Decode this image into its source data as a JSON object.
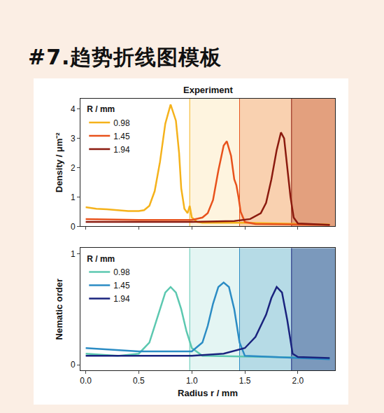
{
  "header": "#7.趋势折线图模板",
  "chart_data": [
    {
      "type": "line",
      "title": "Experiment",
      "ylabel": "Density / μm⁻²",
      "xlim": [
        -0.05,
        2.35
      ],
      "xticks": [
        {
          "value": 0,
          "label": "0.0"
        },
        {
          "value": 0.5,
          "label": "0.5"
        },
        {
          "value": 1,
          "label": "1.0"
        },
        {
          "value": 1.5,
          "label": "1.5"
        },
        {
          "value": 2,
          "label": "2.0"
        }
      ],
      "ylim": [
        0,
        4.35
      ],
      "yticks": [
        0,
        1,
        2,
        3,
        4
      ],
      "tick_labels": "y",
      "grid": false,
      "legend": "upper left",
      "legend_title": "R / mm",
      "series": [
        {
          "name": "0.98",
          "color": "#f5b21b",
          "x": [
            0,
            0.1,
            0.2,
            0.3,
            0.4,
            0.5,
            0.55,
            0.6,
            0.65,
            0.7,
            0.75,
            0.8,
            0.85,
            0.88,
            0.9,
            0.93,
            0.96,
            0.98,
            1.0,
            1.05,
            1.1,
            1.5,
            2.0,
            2.3
          ],
          "values": [
            0.65,
            0.6,
            0.58,
            0.55,
            0.52,
            0.52,
            0.55,
            0.7,
            1.2,
            2.2,
            3.5,
            4.15,
            3.6,
            2.5,
            1.3,
            0.6,
            0.45,
            0.7,
            0.3,
            0.15,
            0.12,
            0.12,
            0.08,
            0.06
          ]
        },
        {
          "name": "1.45",
          "color": "#e8521c",
          "x": [
            0,
            0.5,
            1.0,
            1.1,
            1.15,
            1.2,
            1.25,
            1.3,
            1.33,
            1.37,
            1.4,
            1.42,
            1.44,
            1.46,
            1.5,
            1.6,
            2.3
          ],
          "values": [
            0.25,
            0.22,
            0.22,
            0.3,
            0.45,
            0.9,
            1.9,
            2.75,
            2.9,
            2.4,
            1.6,
            1.4,
            1.0,
            0.5,
            0.15,
            0.08,
            0.05
          ]
        },
        {
          "name": "1.94",
          "color": "#8b1a0e",
          "x": [
            0,
            0.5,
            1.0,
            1.4,
            1.55,
            1.65,
            1.7,
            1.75,
            1.8,
            1.84,
            1.87,
            1.9,
            1.93,
            1.96,
            2.0,
            2.3
          ],
          "values": [
            0.15,
            0.15,
            0.15,
            0.18,
            0.25,
            0.45,
            0.8,
            1.6,
            2.6,
            3.2,
            3.0,
            2.0,
            1.0,
            0.3,
            0.1,
            0.05
          ]
        }
      ]
    },
    {
      "type": "line",
      "xlabel": "Radius r / mm",
      "ylabel": "Nematic order",
      "xlim": [
        -0.05,
        2.35
      ],
      "xticks": [
        {
          "value": 0,
          "label": "0.0"
        },
        {
          "value": 0.5,
          "label": "0.5"
        },
        {
          "value": 1,
          "label": "1.0"
        },
        {
          "value": 1.5,
          "label": "1.5"
        },
        {
          "value": 2,
          "label": "2.0"
        }
      ],
      "ylim": [
        -0.05,
        1.05
      ],
      "yticks": [
        0,
        1
      ],
      "grid": false,
      "legend": "upper left",
      "legend_title": "R / mm",
      "series": [
        {
          "name": "0.98",
          "color": "#5cc8b0",
          "x": [
            0,
            0.3,
            0.5,
            0.6,
            0.65,
            0.7,
            0.75,
            0.8,
            0.85,
            0.9,
            0.95,
            1.0,
            1.1,
            2.3
          ],
          "values": [
            0.1,
            0.08,
            0.1,
            0.2,
            0.35,
            0.5,
            0.65,
            0.7,
            0.65,
            0.5,
            0.3,
            0.15,
            0.08,
            0.06
          ]
        },
        {
          "name": "1.45",
          "color": "#2b8cc4",
          "x": [
            0,
            0.5,
            1.0,
            1.1,
            1.15,
            1.2,
            1.25,
            1.3,
            1.35,
            1.4,
            1.45,
            1.5,
            2.3
          ],
          "values": [
            0.15,
            0.12,
            0.12,
            0.2,
            0.35,
            0.55,
            0.7,
            0.74,
            0.7,
            0.5,
            0.2,
            0.08,
            0.05
          ]
        },
        {
          "name": "1.94",
          "color": "#1a237e",
          "x": [
            0,
            0.5,
            1.0,
            1.3,
            1.5,
            1.6,
            1.7,
            1.75,
            1.8,
            1.85,
            1.9,
            1.95,
            2.0,
            2.3
          ],
          "values": [
            0.08,
            0.08,
            0.08,
            0.1,
            0.15,
            0.25,
            0.45,
            0.6,
            0.7,
            0.65,
            0.4,
            0.1,
            0.07,
            0.06
          ]
        }
      ]
    }
  ]
}
